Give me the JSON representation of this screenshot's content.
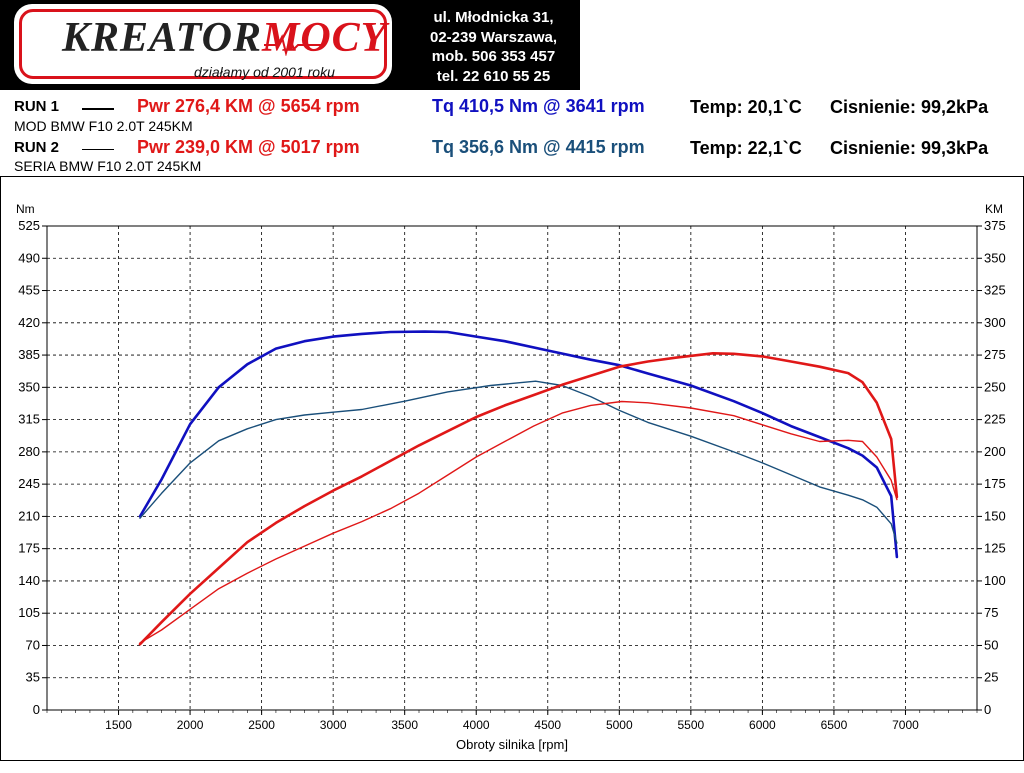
{
  "logo": {
    "brand_main": "KREATOR",
    "brand_accent": "MOCY",
    "slogan": "działamy od 2001 roku"
  },
  "contact": {
    "line1": "ul. Młodnicka 31,",
    "line2": "02-239  Warszawa,",
    "line3": "mob.  506 353 457",
    "line4": "tel.  22 610 55 25"
  },
  "run1": {
    "label": "RUN 1",
    "pwr": "Pwr  276,4 KM @ 5654 rpm",
    "tq": "Tq 410,5 Nm @ 3641 rpm",
    "temp": "Temp: 20,1`C",
    "pressure": "Cisnienie: 99,2kPa",
    "vehicle": "MOD BMW F10 2.0T 245KM"
  },
  "run2": {
    "label": "RUN 2",
    "pwr": "Pwr  239,0 KM @ 5017 rpm",
    "tq": "Tq 356,6 Nm @ 4415 rpm",
    "temp": "Temp: 22,1`C",
    "pressure": "Cisnienie: 99,3kPa",
    "vehicle": "SERIA BMW F10 2.0T 245KM"
  },
  "colors": {
    "power": "#e01818",
    "torque_run1": "#1010c0",
    "torque_run2": "#1a4f7a",
    "grid": "#000000"
  },
  "chart_data": {
    "type": "line",
    "title": "",
    "xlabel": "Obroty silnika [rpm]",
    "ylabel_left": "Nm",
    "ylabel_right": "KM",
    "xlim": [
      1000,
      7500
    ],
    "ylim_left": [
      0,
      525
    ],
    "ylim_right": [
      0,
      375
    ],
    "x_ticks": [
      1500,
      2000,
      2500,
      3000,
      3500,
      4000,
      4500,
      5000,
      5500,
      6000,
      6500,
      7000
    ],
    "y_ticks_left": [
      0,
      35,
      70,
      105,
      140,
      175,
      210,
      245,
      280,
      315,
      350,
      385,
      420,
      455,
      490,
      525
    ],
    "y_ticks_right": [
      0,
      25,
      50,
      75,
      100,
      125,
      150,
      175,
      200,
      225,
      250,
      275,
      300,
      325,
      350,
      375
    ],
    "grid": true,
    "series": [
      {
        "name": "",
        "axis": "left",
        "color": "#1010c0",
        "stroke": "thick",
        "points": [
          [
            1650,
            210
          ],
          [
            1800,
            250
          ],
          [
            2000,
            310
          ],
          [
            2200,
            350
          ],
          [
            2400,
            375
          ],
          [
            2600,
            392
          ],
          [
            2800,
            400
          ],
          [
            3000,
            405
          ],
          [
            3200,
            408
          ],
          [
            3400,
            410
          ],
          [
            3641,
            410.5
          ],
          [
            3800,
            410
          ],
          [
            4000,
            405
          ],
          [
            4200,
            400
          ],
          [
            4500,
            390
          ],
          [
            4800,
            380
          ],
          [
            5000,
            374
          ],
          [
            5200,
            365
          ],
          [
            5500,
            352
          ],
          [
            5800,
            335
          ],
          [
            6000,
            322
          ],
          [
            6200,
            308
          ],
          [
            6400,
            296
          ],
          [
            6600,
            284
          ],
          [
            6700,
            276
          ],
          [
            6800,
            263
          ],
          [
            6900,
            232
          ],
          [
            6940,
            166
          ]
        ]
      },
      {
        "name": "",
        "axis": "left",
        "color": "#1a4f7a",
        "stroke": "thin",
        "points": [
          [
            1650,
            208
          ],
          [
            1800,
            235
          ],
          [
            2000,
            268
          ],
          [
            2200,
            292
          ],
          [
            2400,
            305
          ],
          [
            2600,
            315
          ],
          [
            2800,
            320
          ],
          [
            3000,
            323
          ],
          [
            3200,
            326
          ],
          [
            3500,
            335
          ],
          [
            3800,
            345
          ],
          [
            4100,
            352
          ],
          [
            4415,
            356.6
          ],
          [
            4600,
            352
          ],
          [
            4800,
            340
          ],
          [
            5000,
            325
          ],
          [
            5200,
            312
          ],
          [
            5500,
            297
          ],
          [
            5800,
            280
          ],
          [
            6000,
            268
          ],
          [
            6200,
            255
          ],
          [
            6400,
            242
          ],
          [
            6600,
            233
          ],
          [
            6700,
            228
          ],
          [
            6800,
            220
          ],
          [
            6900,
            202
          ],
          [
            6940,
            181
          ]
        ]
      },
      {
        "name": "",
        "axis": "right",
        "color": "#e01818",
        "stroke": "thick",
        "points": [
          [
            1650,
            51
          ],
          [
            1800,
            68
          ],
          [
            2000,
            90
          ],
          [
            2200,
            110
          ],
          [
            2400,
            130
          ],
          [
            2600,
            145
          ],
          [
            2800,
            158
          ],
          [
            3000,
            170
          ],
          [
            3200,
            181
          ],
          [
            3400,
            193
          ],
          [
            3600,
            205
          ],
          [
            3800,
            216
          ],
          [
            4000,
            227
          ],
          [
            4200,
            236
          ],
          [
            4400,
            244
          ],
          [
            4600,
            252
          ],
          [
            4800,
            259
          ],
          [
            5000,
            266
          ],
          [
            5200,
            270
          ],
          [
            5400,
            273
          ],
          [
            5654,
            276.4
          ],
          [
            5800,
            276
          ],
          [
            6000,
            274
          ],
          [
            6200,
            270
          ],
          [
            6400,
            266
          ],
          [
            6600,
            261
          ],
          [
            6700,
            254
          ],
          [
            6800,
            238
          ],
          [
            6900,
            210
          ],
          [
            6940,
            165
          ]
        ]
      },
      {
        "name": "",
        "axis": "right",
        "color": "#e01818",
        "stroke": "thin",
        "points": [
          [
            1650,
            52
          ],
          [
            1800,
            62
          ],
          [
            2000,
            78
          ],
          [
            2200,
            94
          ],
          [
            2400,
            106
          ],
          [
            2600,
            117
          ],
          [
            2800,
            127
          ],
          [
            3000,
            137
          ],
          [
            3200,
            146
          ],
          [
            3400,
            156
          ],
          [
            3600,
            168
          ],
          [
            3800,
            182
          ],
          [
            4000,
            196
          ],
          [
            4200,
            208
          ],
          [
            4400,
            220
          ],
          [
            4600,
            230
          ],
          [
            4800,
            236
          ],
          [
            5017,
            239
          ],
          [
            5200,
            238
          ],
          [
            5500,
            234
          ],
          [
            5800,
            228
          ],
          [
            6000,
            221
          ],
          [
            6200,
            214
          ],
          [
            6400,
            208
          ],
          [
            6600,
            209
          ],
          [
            6700,
            208
          ],
          [
            6800,
            196
          ],
          [
            6900,
            178
          ],
          [
            6940,
            163
          ]
        ]
      }
    ]
  }
}
